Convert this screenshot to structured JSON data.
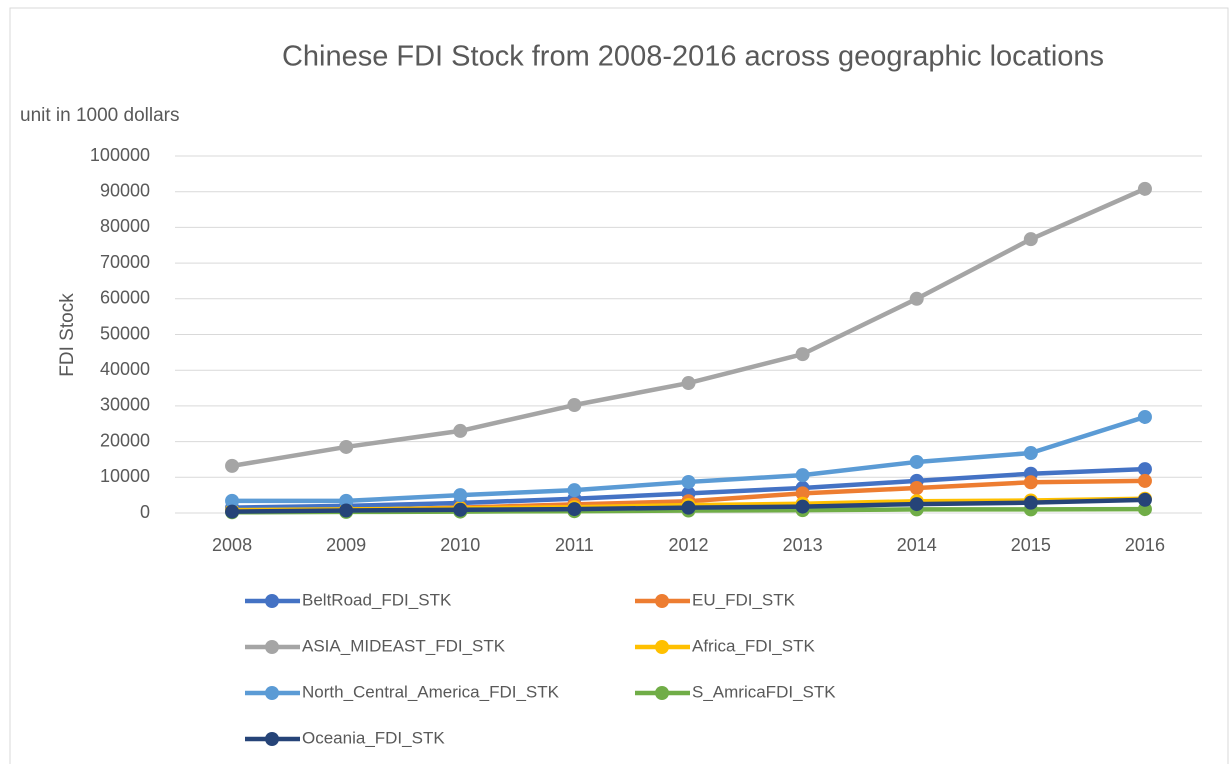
{
  "chart_data": {
    "type": "line",
    "title": "Chinese FDI Stock from 2008-2016 across geographic locations",
    "subtitle": "unit in 1000 dollars",
    "ylabel": "FDI Stock",
    "categories": [
      "2008",
      "2009",
      "2010",
      "2011",
      "2012",
      "2013",
      "2014",
      "2015",
      "2016"
    ],
    "series": [
      {
        "name": "BeltRoad_FDI_STK",
        "color": "#4472c4",
        "values": [
          1500,
          2000,
          2800,
          4000,
          5500,
          7000,
          9000,
          11000,
          12300
        ]
      },
      {
        "name": "EU_FDI_STK",
        "color": "#ed7d31",
        "values": [
          500,
          800,
          1500,
          2400,
          3300,
          5500,
          7000,
          8600,
          9000
        ]
      },
      {
        "name": "ASIA_MIDEAST_FDI_STK",
        "color": "#a5a5a5",
        "values": [
          13200,
          18500,
          23000,
          30250,
          36400,
          44500,
          60000,
          76700,
          90800
        ]
      },
      {
        "name": "Africa_FDI_STK",
        "color": "#ffc000",
        "values": [
          800,
          1000,
          1300,
          1600,
          2200,
          2600,
          3300,
          3500,
          4000
        ]
      },
      {
        "name": "North_Central_America_FDI_STK",
        "color": "#5b9bd5",
        "values": [
          3400,
          3400,
          5000,
          6400,
          8700,
          10600,
          14300,
          16800,
          26900
        ]
      },
      {
        "name": "S_AmricaFDI_STK",
        "color": "#70ad47",
        "values": [
          200,
          300,
          400,
          500,
          700,
          800,
          1000,
          1000,
          1100
        ]
      },
      {
        "name": "Oceania_FDI_STK",
        "color": "#264478",
        "values": [
          400,
          700,
          900,
          1100,
          1500,
          1800,
          2500,
          2900,
          3700
        ]
      }
    ],
    "ylim": [
      0,
      100000
    ],
    "yticks": [
      0,
      10000,
      20000,
      30000,
      40000,
      50000,
      60000,
      70000,
      80000,
      90000,
      100000
    ],
    "grid": true,
    "legend": "bottom"
  }
}
